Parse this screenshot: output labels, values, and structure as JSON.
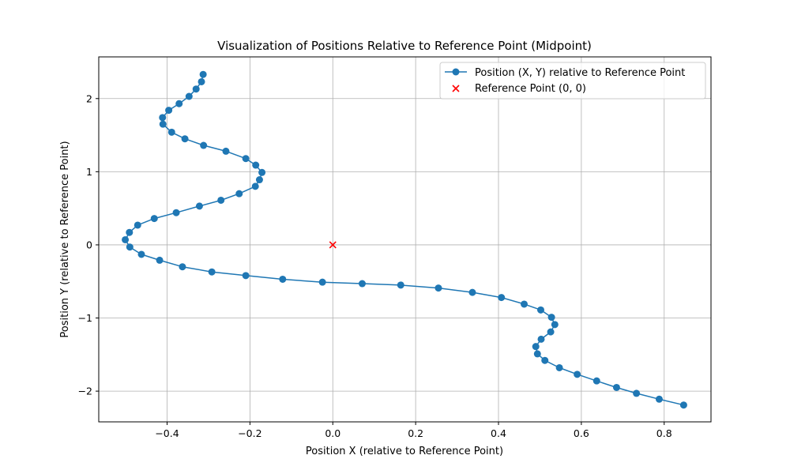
{
  "chart_data": {
    "type": "scatter",
    "title": "Visualization of Positions Relative to Reference Point (Midpoint)",
    "xlabel": "Position X (relative to Reference Point)",
    "ylabel": "Position Y (relative to Reference Point)",
    "xlim": [
      -0.565,
      0.913
    ],
    "ylim": [
      -2.42,
      2.57
    ],
    "xticks": [
      -0.4,
      -0.2,
      0,
      0.2,
      0.4,
      0.6,
      0.8
    ],
    "xtick_labels": [
      "−0.4",
      "−0.2",
      "0.0",
      "0.2",
      "0.4",
      "0.6",
      "0.8"
    ],
    "yticks": [
      -2,
      -1,
      0,
      1,
      2
    ],
    "ytick_labels": [
      "−2",
      "−1",
      "0",
      "1",
      "2"
    ],
    "grid": true,
    "legend_position": "top-right",
    "series": [
      {
        "name": "Position (X, Y) relative to Reference Point",
        "color": "#1f77b4",
        "marker": "circle",
        "line": true,
        "x": [
          -0.313,
          -0.317,
          -0.33,
          -0.347,
          -0.371,
          -0.396,
          -0.411,
          -0.41,
          -0.389,
          -0.357,
          -0.312,
          -0.258,
          -0.21,
          -0.186,
          -0.171,
          -0.177,
          -0.187,
          -0.226,
          -0.27,
          -0.322,
          -0.378,
          -0.431,
          -0.471,
          -0.491,
          -0.501,
          -0.49,
          -0.462,
          -0.418,
          -0.363,
          -0.292,
          -0.21,
          -0.121,
          -0.025,
          0.071,
          0.164,
          0.255,
          0.337,
          0.407,
          0.462,
          0.502,
          0.528,
          0.536,
          0.526,
          0.503,
          0.49,
          0.494,
          0.512,
          0.547,
          0.59,
          0.637,
          0.685,
          0.733,
          0.788,
          0.847
        ],
        "y": [
          2.33,
          2.23,
          2.13,
          2.03,
          1.93,
          1.84,
          1.74,
          1.65,
          1.54,
          1.45,
          1.36,
          1.28,
          1.18,
          1.09,
          0.99,
          0.89,
          0.8,
          0.7,
          0.61,
          0.53,
          0.44,
          0.36,
          0.27,
          0.17,
          0.07,
          -0.03,
          -0.13,
          -0.21,
          -0.3,
          -0.37,
          -0.42,
          -0.47,
          -0.51,
          -0.53,
          -0.55,
          -0.59,
          -0.65,
          -0.72,
          -0.81,
          -0.89,
          -0.99,
          -1.09,
          -1.19,
          -1.29,
          -1.39,
          -1.49,
          -1.58,
          -1.68,
          -1.77,
          -1.86,
          -1.95,
          -2.03,
          -2.11,
          -2.19
        ]
      },
      {
        "name": "Reference Point (0, 0)",
        "color": "#ff0000",
        "marker": "x",
        "line": false,
        "x": [
          0
        ],
        "y": [
          0
        ]
      }
    ]
  }
}
